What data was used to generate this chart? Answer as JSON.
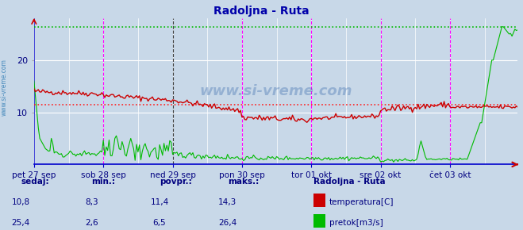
{
  "title": "Radoljna - Ruta",
  "title_color": "#0000aa",
  "bg_color": "#c8d8e8",
  "plot_bg_color": "#c8d8e8",
  "grid_color": "#ffffff",
  "xlabel_color": "#000080",
  "ylabel_color": "#000080",
  "watermark": "www.si-vreme.com",
  "ylim": [
    0,
    28
  ],
  "yticks": [
    10,
    20
  ],
  "n": 336,
  "temp_avg": 11.4,
  "temp_min": 8.3,
  "temp_max": 14.3,
  "temp_current": 10.8,
  "flow_avg": 6.5,
  "flow_min": 2.6,
  "flow_max": 26.4,
  "flow_current": 25.4,
  "temp_color": "#cc0000",
  "flow_color": "#00bb00",
  "avg_temp_line_color": "#ff2020",
  "avg_flow_line_color": "#00bb00",
  "vline_color_magenta": "#ff00ff",
  "vline_color_dark": "#404040",
  "day_labels": [
    "pet 27 sep",
    "sob 28 sep",
    "ned 29 sep",
    "pon 30 sep",
    "tor 01 okt",
    "sre 02 okt",
    "čet 03 okt"
  ],
  "day_positions": [
    0,
    48,
    96,
    144,
    192,
    240,
    288
  ],
  "sunday_index": 2,
  "legend_label_temp": "temperatura[C]",
  "legend_label_flow": "pretok[m3/s]",
  "station_label": "Radoljna - Ruta",
  "info_color": "#000080",
  "bottom_labels": [
    "sedaj:",
    "min.:",
    "povpr.:",
    "maks.:"
  ],
  "bottom_values_temp": [
    "10,8",
    "8,3",
    "11,4",
    "14,3"
  ],
  "bottom_values_flow": [
    "25,4",
    "2,6",
    "6,5",
    "26,4"
  ],
  "watermark_color": "#4488bb",
  "left_label_color": "#4488bb",
  "axis_line_color": "#0000cc",
  "arrow_color": "#cc0000"
}
